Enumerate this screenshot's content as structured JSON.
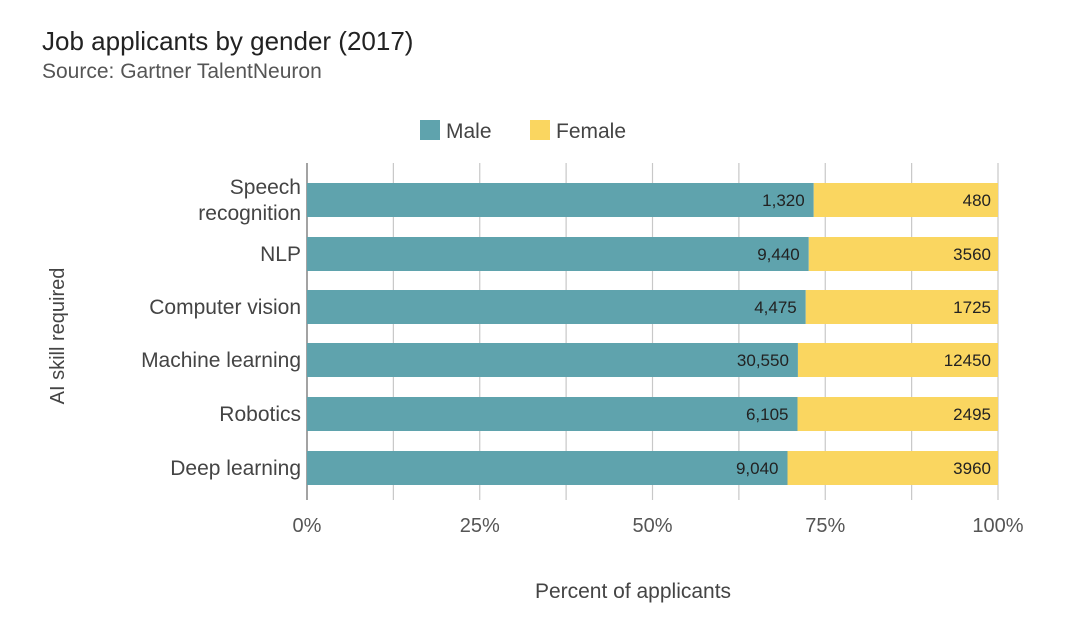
{
  "header": {
    "title": "Job applicants by gender (2017)",
    "subtitle": "Source: Gartner TalentNeuron"
  },
  "colors": {
    "male": "#5fa3ad",
    "female": "#fad660",
    "grid": "#c8c8c8",
    "axis": "#888888"
  },
  "chart_data": {
    "type": "bar",
    "orientation": "horizontal",
    "stacked": "percent",
    "title": "Job applicants by gender (2017)",
    "subtitle": "Source: Gartner TalentNeuron",
    "xlabel": "Percent of applicants",
    "ylabel": "AI skill required",
    "xlim": [
      0,
      100
    ],
    "xticks": [
      "0%",
      "25%",
      "50%",
      "75%",
      "100%"
    ],
    "grid": true,
    "legend": "top",
    "categories": [
      {
        "label_lines": [
          "Speech",
          "recognition"
        ],
        "name": "Speech recognition"
      },
      {
        "label_lines": [
          "NLP"
        ],
        "name": "NLP"
      },
      {
        "label_lines": [
          "Computer vision"
        ],
        "name": "Computer vision"
      },
      {
        "label_lines": [
          "Machine learning"
        ],
        "name": "Machine learning"
      },
      {
        "label_lines": [
          "Robotics"
        ],
        "name": "Robotics"
      },
      {
        "label_lines": [
          "Deep learning"
        ],
        "name": "Deep learning"
      }
    ],
    "series": [
      {
        "name": "Male",
        "values": [
          1320,
          9440,
          4475,
          30550,
          6105,
          9040
        ],
        "labels": [
          "1,320",
          "9,440",
          "4,475",
          "30,550",
          "6,105",
          "9,040"
        ]
      },
      {
        "name": "Female",
        "values": [
          480,
          3560,
          1725,
          12450,
          2495,
          3960
        ],
        "labels": [
          "480",
          "3560",
          "1725",
          "12450",
          "2495",
          "3960"
        ]
      }
    ]
  }
}
